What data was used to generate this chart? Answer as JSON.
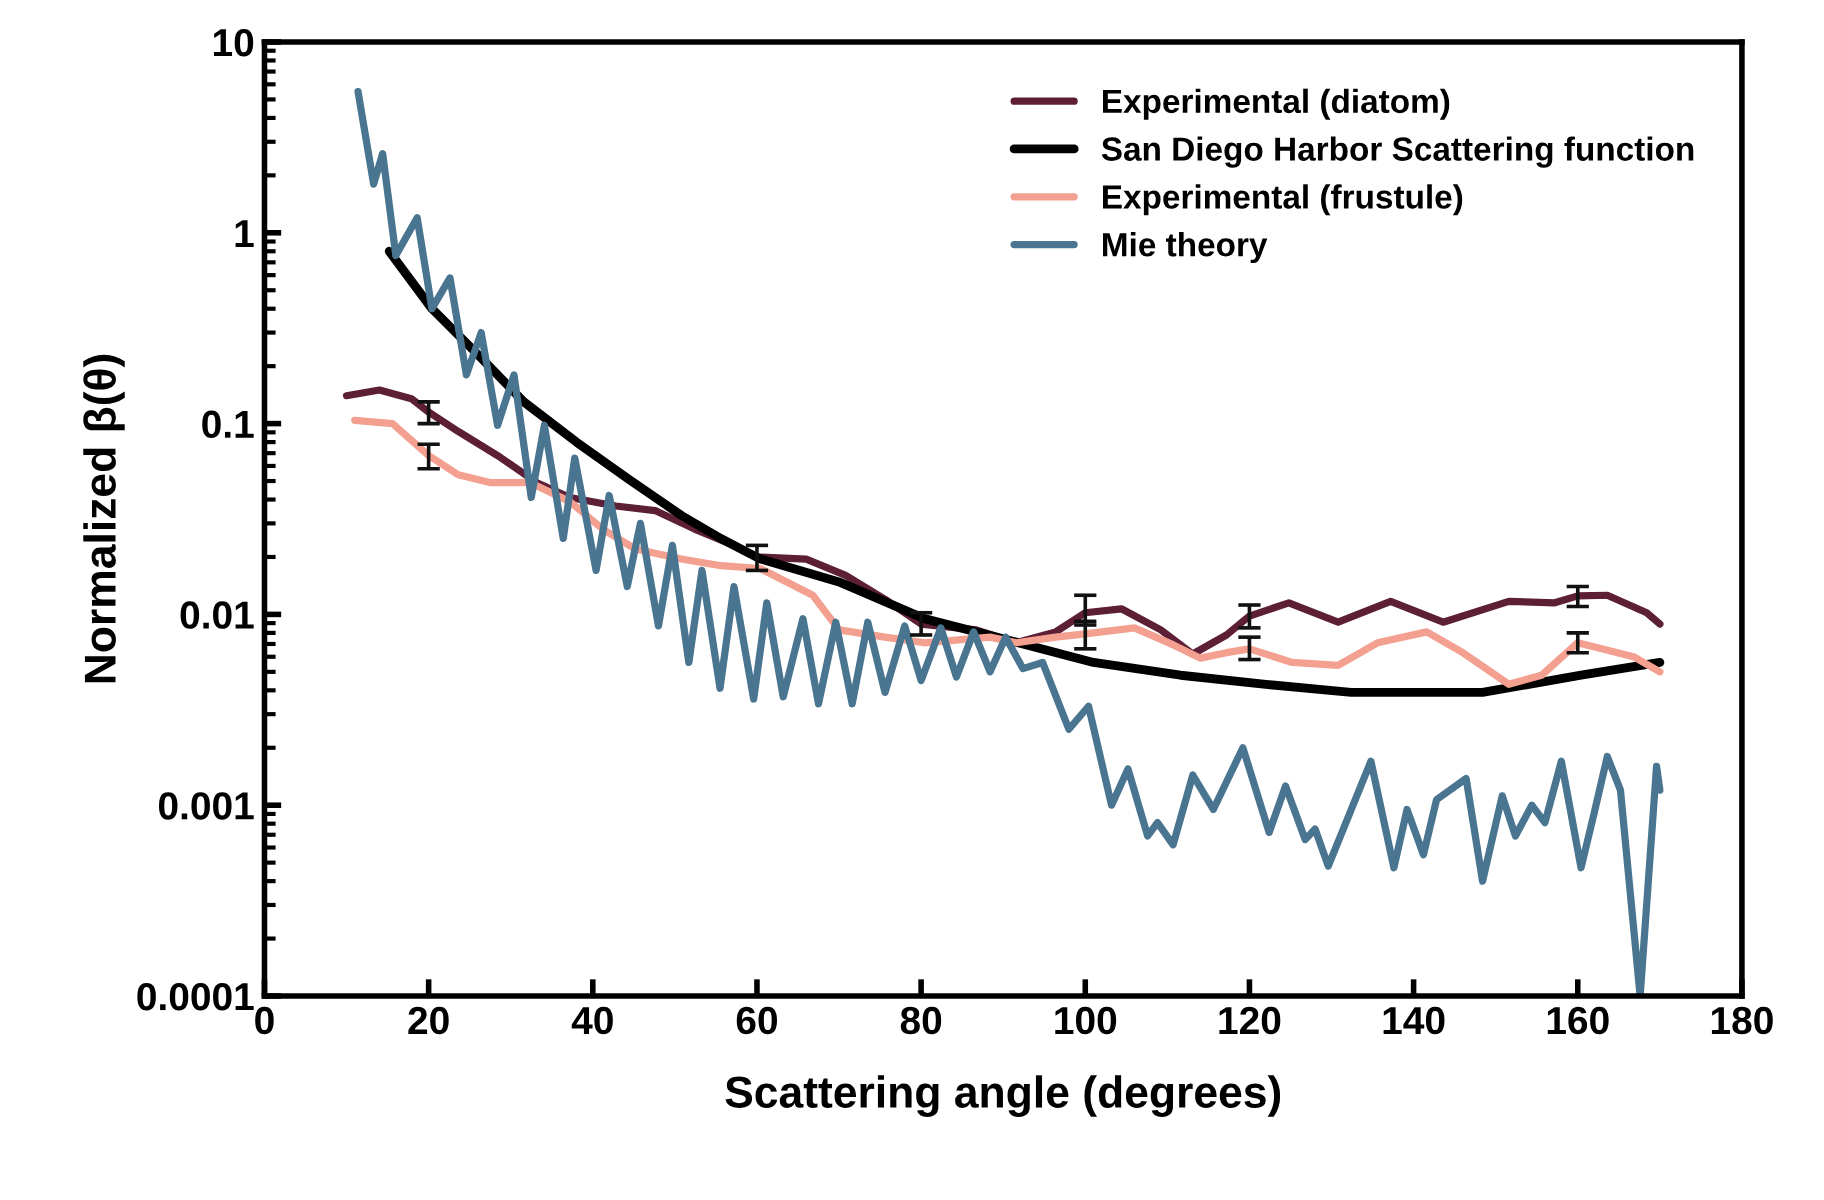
{
  "chart_data": {
    "type": "line",
    "xlabel": "Scattering angle (degrees)",
    "ylabel": "Normalized β(θ)",
    "log": "y",
    "xlim": [
      0,
      180
    ],
    "xticks": [
      0,
      20,
      40,
      60,
      80,
      100,
      120,
      140,
      160,
      180
    ],
    "ylim": [
      0.0001,
      10
    ],
    "yticks": [
      0.0001,
      0.001,
      0.01,
      0.1,
      1,
      10
    ],
    "grid": false,
    "legend": "top right",
    "marker": "none",
    "line_style": "solid",
    "series": [
      {
        "name": "Experimental (diatom)",
        "color": "#5c1f35",
        "x": [
          10,
          14,
          17.9,
          20,
          23.6,
          28.4,
          33.2,
          37.2,
          42.8,
          47.6,
          52.4,
          57.2,
          60,
          66,
          70.8,
          75.6,
          80,
          86.7,
          91.6,
          96.4,
          100,
          104.4,
          109.2,
          113.1,
          117.2,
          120,
          124.8,
          130.8,
          137.2,
          143.6,
          151.6,
          157.2,
          160,
          163.6,
          168.4,
          170
        ],
        "values": [
          0.14,
          0.15,
          0.135,
          0.115,
          0.091,
          0.068,
          0.049,
          0.041,
          0.037,
          0.035,
          0.028,
          0.023,
          0.02,
          0.0195,
          0.016,
          0.012,
          0.0089,
          0.0083,
          0.0071,
          0.0081,
          0.0102,
          0.0107,
          0.0083,
          0.0062,
          0.0078,
          0.0098,
          0.0115,
          0.0091,
          0.0117,
          0.0091,
          0.0117,
          0.0115,
          0.0125,
          0.0126,
          0.0102,
          0.0089
        ],
        "errors": [
          null,
          null,
          null,
          [
            0.1,
            0.13
          ],
          null,
          null,
          null,
          null,
          null,
          null,
          null,
          null,
          [
            0.017,
            0.023
          ],
          null,
          null,
          null,
          [
            0.0078,
            0.0102
          ],
          null,
          null,
          null,
          [
            0.0088,
            0.0126
          ],
          null,
          null,
          null,
          null,
          [
            0.0085,
            0.0112
          ],
          null,
          null,
          null,
          null,
          null,
          null,
          [
            0.011,
            0.014
          ],
          null,
          null,
          null
        ]
      },
      {
        "name": "San Diego Harbor Scattering function",
        "color": "#000000",
        "x": [
          15.2,
          20.4,
          26,
          31.6,
          38,
          44.4,
          50.8,
          55.6,
          60.3,
          70,
          80.4,
          90.8,
          101,
          111.6,
          122,
          132.4,
          148.4,
          160.4,
          170
        ],
        "values": [
          0.8,
          0.4,
          0.23,
          0.13,
          0.08,
          0.051,
          0.033,
          0.025,
          0.0196,
          0.0148,
          0.0095,
          0.0073,
          0.0056,
          0.0048,
          0.0043,
          0.0039,
          0.0039,
          0.0048,
          0.0056
        ]
      },
      {
        "name": "Experimental (frustule)",
        "color": "#f4a090",
        "x": [
          11,
          15.6,
          20,
          23.6,
          27.6,
          32.4,
          37.2,
          41.2,
          45.2,
          50.8,
          55.6,
          60.4,
          66.8,
          70,
          75.6,
          80.4,
          88.4,
          91.6,
          96.4,
          100,
          106,
          110.8,
          114,
          117.2,
          120,
          125.2,
          130.8,
          135.6,
          141.6,
          146,
          151.6,
          155.6,
          160,
          166.8,
          170
        ],
        "values": [
          0.104,
          0.1,
          0.068,
          0.054,
          0.049,
          0.049,
          0.039,
          0.028,
          0.022,
          0.0195,
          0.018,
          0.0174,
          0.0126,
          0.0083,
          0.0076,
          0.0071,
          0.0076,
          0.0071,
          0.0076,
          0.0079,
          0.0085,
          0.0069,
          0.0059,
          0.0063,
          0.0066,
          0.0056,
          0.0054,
          0.0071,
          0.0081,
          0.0063,
          0.0043,
          0.0048,
          0.0071,
          0.006,
          0.005
        ],
        "errors": [
          null,
          null,
          [
            0.058,
            0.078
          ],
          null,
          null,
          null,
          null,
          null,
          null,
          null,
          null,
          null,
          null,
          null,
          null,
          null,
          null,
          null,
          null,
          [
            0.0066,
            0.0092
          ],
          null,
          null,
          null,
          null,
          [
            0.0058,
            0.0076
          ],
          null,
          null,
          null,
          null,
          null,
          null,
          null,
          [
            0.0063,
            0.008
          ],
          null,
          null
        ]
      },
      {
        "name": "Mie theory",
        "color": "#4a7590",
        "x": [
          11.4,
          13.3,
          14.4,
          16.0,
          18.6,
          20.4,
          22.6,
          24.6,
          26.4,
          28.4,
          30.4,
          32.5,
          34.1,
          36.4,
          37.8,
          40.4,
          42.0,
          44.2,
          45.8,
          48.0,
          49.7,
          51.7,
          53.3,
          55.5,
          57.2,
          59.6,
          61.2,
          63.2,
          65.6,
          67.5,
          69.6,
          71.6,
          73.5,
          75.6,
          78.0,
          80.0,
          82.4,
          84.3,
          86.4,
          88.4,
          90.3,
          92.4,
          94.8,
          98.0,
          100.4,
          103.2,
          105.2,
          107.6,
          108.8,
          110.7,
          113.1,
          115.6,
          119.2,
          122.4,
          124.4,
          126.8,
          128.0,
          129.6,
          134.8,
          137.6,
          139.2,
          141.2,
          142.8,
          146.4,
          148.4,
          150.8,
          152.4,
          154.4,
          156.0,
          158.0,
          160.4,
          162.0,
          163.6,
          165.2,
          167.6,
          169.6,
          170
        ],
        "values": [
          5.5,
          1.8,
          2.6,
          0.76,
          1.2,
          0.4,
          0.58,
          0.18,
          0.3,
          0.098,
          0.18,
          0.041,
          0.098,
          0.025,
          0.066,
          0.017,
          0.042,
          0.014,
          0.03,
          0.0087,
          0.023,
          0.0056,
          0.017,
          0.0041,
          0.014,
          0.0036,
          0.0115,
          0.0037,
          0.0095,
          0.0034,
          0.0091,
          0.0034,
          0.0091,
          0.0039,
          0.0087,
          0.0045,
          0.0085,
          0.0047,
          0.0081,
          0.005,
          0.0076,
          0.0052,
          0.0056,
          0.0025,
          0.0033,
          0.001,
          0.00155,
          0.00069,
          0.00081,
          0.00062,
          0.00144,
          0.00095,
          0.002,
          0.00072,
          0.00126,
          0.00066,
          0.00075,
          0.00048,
          0.0017,
          0.00047,
          0.00095,
          0.00055,
          0.00107,
          0.00138,
          0.0004,
          0.00112,
          0.00069,
          0.001,
          0.00081,
          0.0017,
          0.00047,
          0.00091,
          0.0018,
          0.0012,
          0.0001,
          0.0016,
          0.0012
        ]
      }
    ]
  }
}
